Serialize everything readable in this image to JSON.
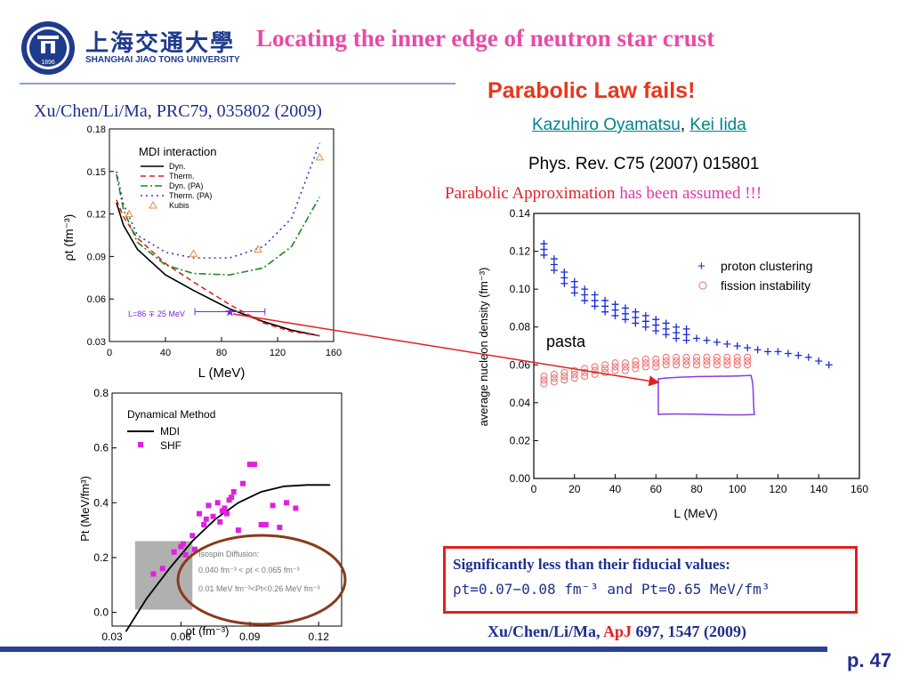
{
  "header": {
    "title": "Locating the inner edge of neutron star crust",
    "logo_cn": "上海交通大學",
    "logo_en": "SHANGHAI  JIAO TONG  UNIVERSITY",
    "logo_year": "1896"
  },
  "left_reference": "Xu/Chen/Li/Ma, PRC79, 035802 (2009)",
  "right_header": {
    "headline": "Parabolic Law fails!",
    "author1": "Kazuhiro Oyamatsu",
    "separator": ", ",
    "author2": "Kei Iida",
    "journal": "Phys. Rev. C75 (2007) 015801",
    "assume_part1": "Parabolic Approximation",
    "assume_part2": " has been assumed !!!"
  },
  "annotations": {
    "pasta": "pasta",
    "isospin_title": "Isospin Diffusion:",
    "isospin_line1": "0.040 fm⁻³ < ρt < 0.065 fm⁻³",
    "isospin_line2": "0.01 MeV fm⁻³<Pt<0.26 MeV fm⁻³",
    "L_label": "L=86 ∓ 25 MeV"
  },
  "summary_box": {
    "line1": "Significantly less than their fiducial values:",
    "line2": "ρt=0.07−0.08 fm⁻³ and Pt=0.65 MeV/fm³"
  },
  "bottom_reference": {
    "part1": "Xu/Chen/Li/Ma, ",
    "part2": "ApJ",
    "part3": " 697, 1547 (2009)"
  },
  "page_number": "p. 47",
  "colors": {
    "title": "#e84aa6",
    "headline": "#e8361c",
    "navy": "#1f2f8c",
    "accent_red": "#e02020"
  },
  "chart_data": [
    {
      "type": "line",
      "legend_title": "MDI interaction",
      "xlabel": "L (MeV)",
      "ylabel": "ρt (fm⁻³)",
      "xlim": [
        0,
        160
      ],
      "ylim": [
        0.03,
        0.18
      ],
      "xticks": [
        "0",
        "40",
        "80",
        "120",
        "160"
      ],
      "yticks": [
        "0.03",
        "0.06",
        "0.09",
        "0.12",
        "0.15",
        "0.18"
      ],
      "series": [
        {
          "name": "Dyn.",
          "color": "#000000",
          "dash": "solid",
          "x": [
            5,
            10,
            20,
            40,
            60,
            86,
            110,
            130,
            150
          ],
          "y": [
            0.128,
            0.112,
            0.095,
            0.077,
            0.066,
            0.053,
            0.044,
            0.038,
            0.034
          ]
        },
        {
          "name": "Therm.",
          "color": "#e02020",
          "dash": "dash",
          "x": [
            5,
            10,
            20,
            40,
            60,
            86,
            110,
            130,
            150
          ],
          "y": [
            0.13,
            0.118,
            0.103,
            0.085,
            0.072,
            0.056,
            0.043,
            0.037,
            0.034
          ]
        },
        {
          "name": "Dyn. (PA)",
          "color": "#1a8a1a",
          "dash": "dashdot",
          "x": [
            5,
            10,
            20,
            40,
            60,
            86,
            110,
            130,
            150
          ],
          "y": [
            0.148,
            0.123,
            0.1,
            0.084,
            0.078,
            0.077,
            0.082,
            0.097,
            0.132
          ]
        },
        {
          "name": "Therm. (PA)",
          "color": "#2a3bd0",
          "dash": "dot",
          "x": [
            5,
            10,
            20,
            40,
            60,
            86,
            110,
            130,
            150
          ],
          "y": [
            0.15,
            0.127,
            0.105,
            0.093,
            0.089,
            0.089,
            0.097,
            0.117,
            0.17
          ]
        },
        {
          "name": "Kubis",
          "color": "#e88a3a",
          "marker": "triangle",
          "x": [
            14,
            60,
            106,
            150
          ],
          "y": [
            0.12,
            0.092,
            0.095,
            0.16
          ]
        }
      ],
      "point": {
        "label": "L=86 ∓ 25 MeV",
        "x": 86,
        "y": 0.051,
        "xerr": [
          61,
          111
        ]
      }
    },
    {
      "type": "scatter",
      "xlabel": "ρt (fm⁻³)",
      "ylabel": "Pt (MeV/fm³)",
      "xlim": [
        0.03,
        0.13
      ],
      "ylim": [
        -0.05,
        0.8
      ],
      "xticks": [
        "0.03",
        "0.06",
        "0.09",
        "0.12"
      ],
      "yticks": [
        "0.0",
        "0.2",
        "0.4",
        "0.6",
        "0.8"
      ],
      "legend_title": "Dynamical Method",
      "series": [
        {
          "name": "MDI",
          "color": "#000000",
          "x": [
            0.036,
            0.045,
            0.055,
            0.065,
            0.075,
            0.085,
            0.095,
            0.105,
            0.115,
            0.125
          ],
          "y": [
            -0.07,
            0.05,
            0.16,
            0.26,
            0.34,
            0.4,
            0.44,
            0.46,
            0.465,
            0.465
          ]
        },
        {
          "name": "SHF",
          "color": "#e020e0",
          "marker": "square",
          "x": [
            0.048,
            0.052,
            0.057,
            0.06,
            0.062,
            0.065,
            0.068,
            0.07,
            0.072,
            0.074,
            0.076,
            0.077,
            0.078,
            0.079,
            0.08,
            0.081,
            0.082,
            0.083,
            0.085,
            0.087,
            0.09,
            0.092,
            0.095,
            0.097,
            0.1,
            0.103,
            0.106,
            0.11,
            0.061,
            0.066,
            0.071
          ],
          "y": [
            0.14,
            0.16,
            0.22,
            0.24,
            0.21,
            0.28,
            0.36,
            0.32,
            0.39,
            0.35,
            0.4,
            0.33,
            0.37,
            0.38,
            0.36,
            0.41,
            0.42,
            0.44,
            0.3,
            0.47,
            0.54,
            0.54,
            0.32,
            0.32,
            0.39,
            0.31,
            0.4,
            0.38,
            0.25,
            0.23,
            0.34
          ]
        }
      ],
      "region": {
        "x": [
          0.04,
          0.065
        ],
        "y": [
          0.01,
          0.26
        ],
        "color": "#b0b0b0"
      }
    },
    {
      "type": "scatter",
      "xlabel": "L (MeV)",
      "ylabel": "average nucleon density (fm⁻³)",
      "xlim": [
        0,
        160
      ],
      "ylim": [
        0,
        0.14
      ],
      "xticks": [
        "0",
        "20",
        "40",
        "60",
        "80",
        "100",
        "120",
        "140",
        "160"
      ],
      "yticks": [
        "0.00",
        "0.02",
        "0.04",
        "0.06",
        "0.08",
        "0.10",
        "0.12",
        "0.14"
      ],
      "series": [
        {
          "name": "proton clustering",
          "color": "#1a2ad8",
          "marker": "plus",
          "x": [
            5,
            10,
            15,
            20,
            25,
            30,
            35,
            40,
            45,
            50,
            55,
            60,
            65,
            70,
            75,
            80,
            85,
            90,
            95,
            100,
            105,
            110,
            115,
            120,
            125,
            130,
            135,
            140,
            145
          ],
          "y": [
            0.121,
            0.113,
            0.106,
            0.101,
            0.097,
            0.094,
            0.091,
            0.089,
            0.087,
            0.085,
            0.083,
            0.081,
            0.079,
            0.077,
            0.076,
            0.074,
            0.073,
            0.072,
            0.071,
            0.07,
            0.069,
            0.068,
            0.067,
            0.067,
            0.066,
            0.065,
            0.064,
            0.062,
            0.06
          ]
        },
        {
          "name": "fission instability",
          "color": "#f06a6a",
          "marker": "circle",
          "x": [
            5,
            10,
            15,
            20,
            25,
            30,
            35,
            40,
            45,
            50,
            55,
            60,
            65,
            70,
            75,
            80,
            85,
            90,
            95,
            100,
            105
          ],
          "y": [
            0.052,
            0.053,
            0.054,
            0.055,
            0.056,
            0.057,
            0.058,
            0.059,
            0.059,
            0.06,
            0.061,
            0.061,
            0.062,
            0.062,
            0.062,
            0.062,
            0.062,
            0.062,
            0.062,
            0.062,
            0.062
          ]
        }
      ]
    }
  ]
}
